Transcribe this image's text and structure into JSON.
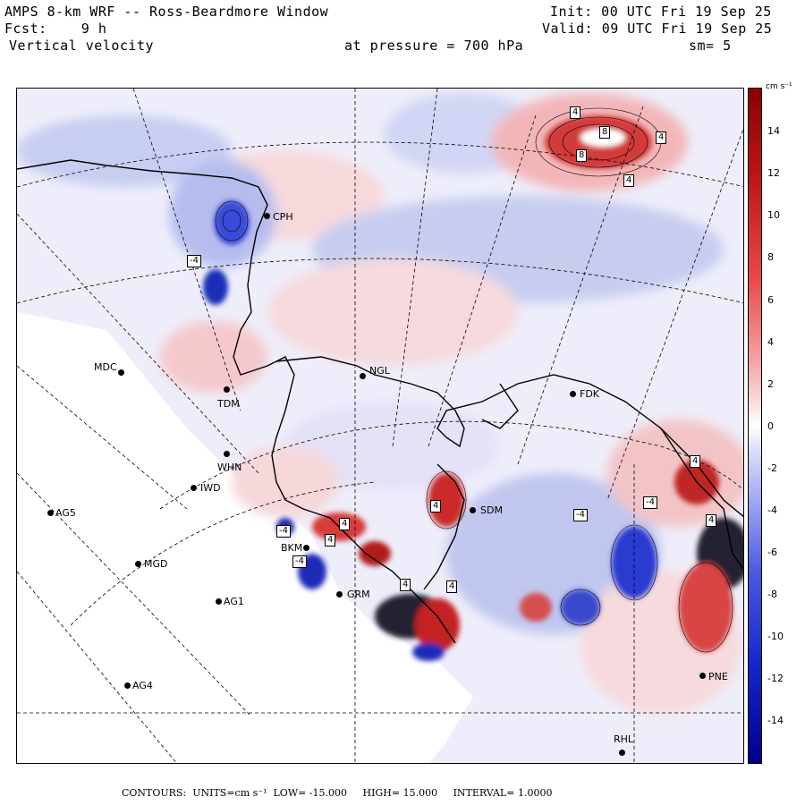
{
  "header": {
    "model": "AMPS 8-km WRF -- Ross-Beardmore Window",
    "fcst_label": "Fcst:",
    "fcst_value": "9 h",
    "field": "Vertical velocity",
    "pressure_label": "at pressure =",
    "pressure_value": "700 hPa",
    "init": "Init: 00 UTC Fri 19 Sep 25",
    "valid": "Valid: 09 UTC Fri 19 Sep 25",
    "smoothing": "sm= 5"
  },
  "colorbar": {
    "units": "cm s⁻¹",
    "ticks": [
      "14",
      "12",
      "10",
      "8",
      "6",
      "4",
      "2",
      "0",
      "-2",
      "-4",
      "-6",
      "-8",
      "-10",
      "-12",
      "-14"
    ],
    "low_color": "#00008b",
    "high_color": "#8b0000",
    "zero_color": "#ffffff"
  },
  "stations": [
    {
      "code": "CPH"
    },
    {
      "code": "MDC"
    },
    {
      "code": "NGL"
    },
    {
      "code": "FDK"
    },
    {
      "code": "TDM"
    },
    {
      "code": "WHN"
    },
    {
      "code": "IWD"
    },
    {
      "code": "AG5"
    },
    {
      "code": "SDM"
    },
    {
      "code": "BKM"
    },
    {
      "code": "MGD"
    },
    {
      "code": "AG1"
    },
    {
      "code": "GRM"
    },
    {
      "code": "AG4"
    },
    {
      "code": "PNE"
    },
    {
      "code": "RHL"
    }
  ],
  "contour_labels": [
    "-4",
    "4",
    "8",
    "8",
    "4",
    "4",
    "4",
    "4",
    "-4",
    "-4",
    "4",
    "4",
    "4",
    "-4",
    "-4",
    "4",
    "4"
  ],
  "footer": {
    "contours_label": "CONTOURS:",
    "units_text": "UNITS=cm s⁻¹",
    "low": "LOW= -15.000",
    "high": "HIGH= 15.000",
    "interval": "INTERVAL= 1.0000"
  }
}
